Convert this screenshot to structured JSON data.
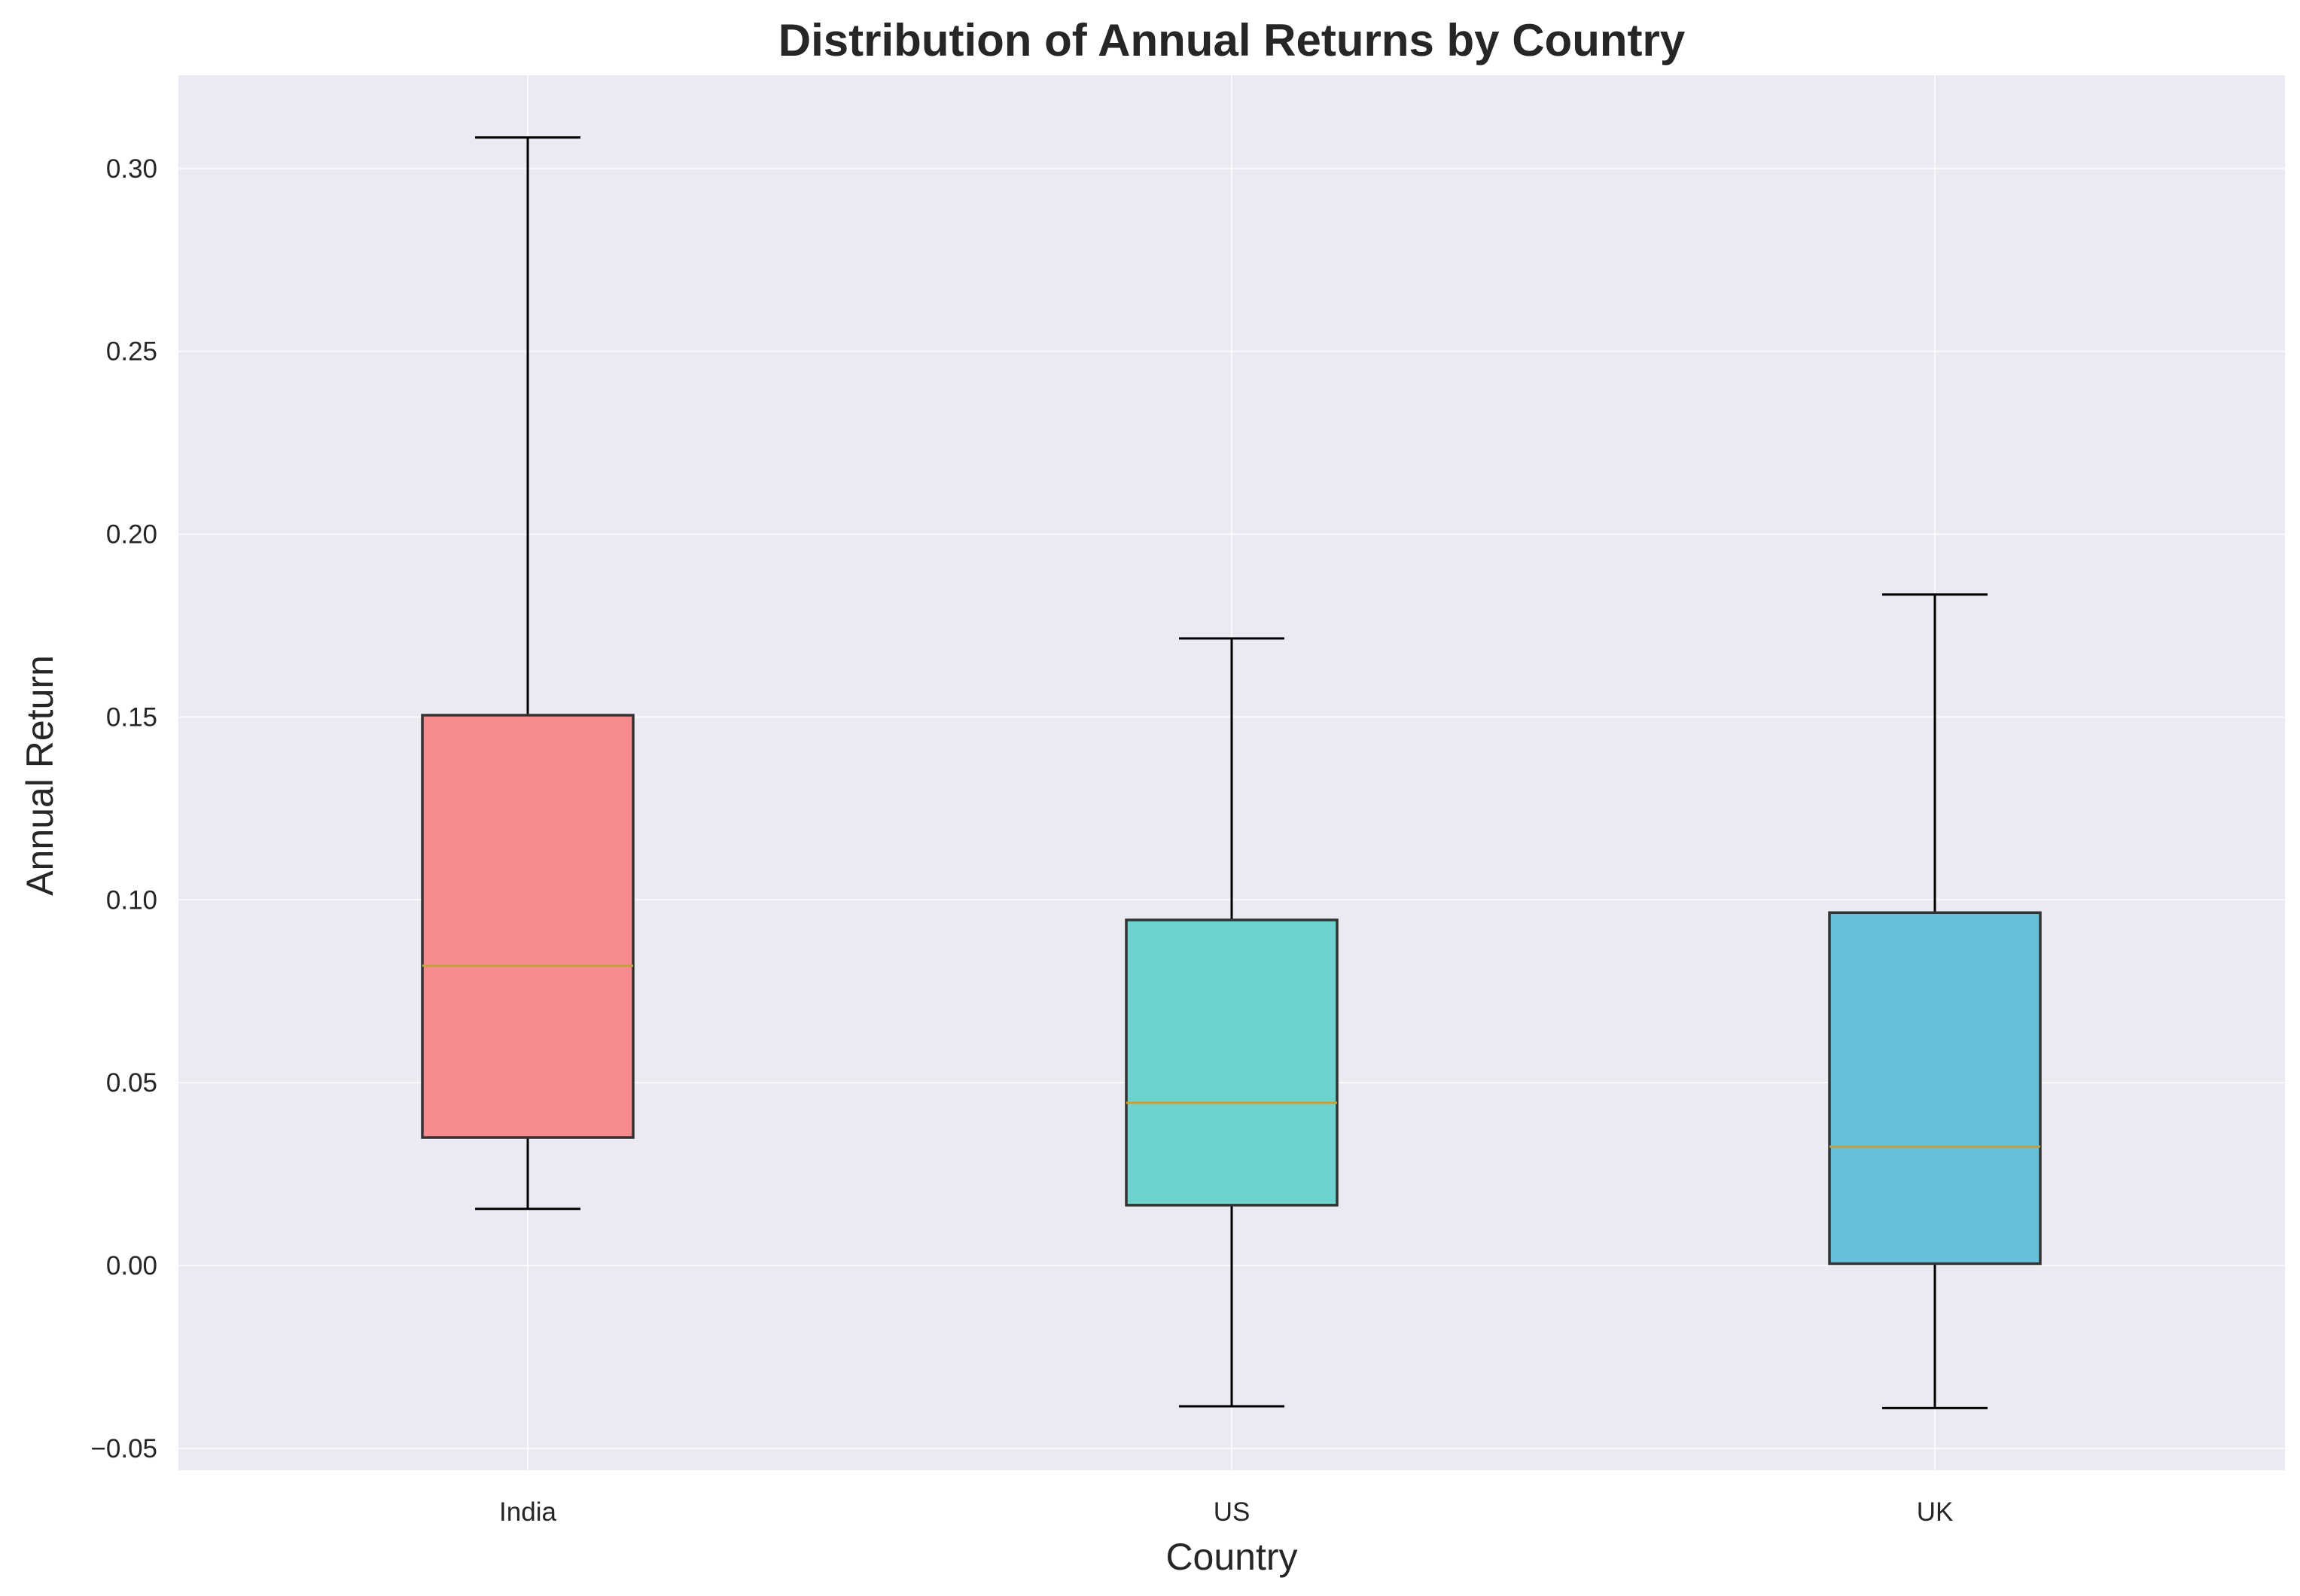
{
  "chart_data": {
    "type": "box",
    "title": "Distribution of Annual Returns by Country",
    "xlabel": "Country",
    "ylabel": "Annual Return",
    "ylim": [
      -0.056,
      0.3255
    ],
    "yticks": [
      -0.05,
      0.0,
      0.05,
      0.1,
      0.15,
      0.2,
      0.25,
      0.3
    ],
    "ytick_labels": [
      "−0.05",
      "0.00",
      "0.05",
      "0.10",
      "0.15",
      "0.20",
      "0.25",
      "0.30"
    ],
    "grid": true,
    "background_color": "#eaeaf2",
    "median_color": "#c4a13f",
    "categories": [
      "India",
      "US",
      "UK"
    ],
    "boxes": [
      {
        "category": "India",
        "whisker_low": 0.0155,
        "q1": 0.035,
        "median": 0.082,
        "q3": 0.1505,
        "whisker_high": 0.3085,
        "color": "#f78b8e"
      },
      {
        "category": "US",
        "whisker_low": -0.0385,
        "q1": 0.0165,
        "median": 0.0445,
        "q3": 0.0945,
        "whisker_high": 0.1715,
        "color": "#6ed3cf"
      },
      {
        "category": "UK",
        "whisker_low": -0.039,
        "q1": 0.0005,
        "median": 0.0325,
        "q3": 0.0965,
        "whisker_high": 0.1835,
        "color": "#66c0d8"
      }
    ]
  }
}
